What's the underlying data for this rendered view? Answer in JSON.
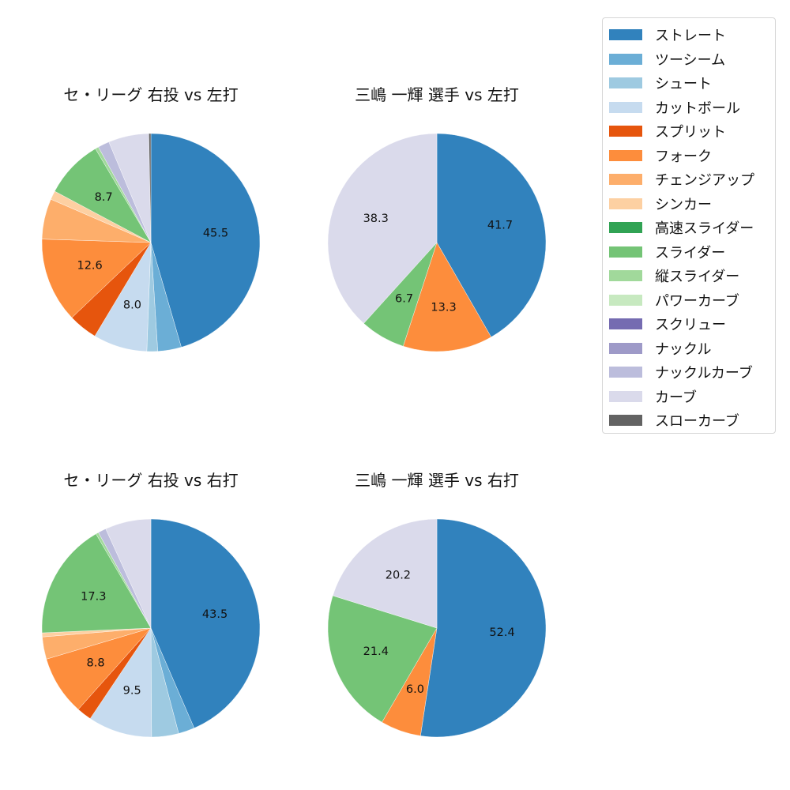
{
  "legend": {
    "items": [
      {
        "label": "ストレート",
        "color": "#3182bd"
      },
      {
        "label": "ツーシーム",
        "color": "#6baed6"
      },
      {
        "label": "シュート",
        "color": "#9ecae1"
      },
      {
        "label": "カットボール",
        "color": "#c6dbef"
      },
      {
        "label": "スプリット",
        "color": "#e6550d"
      },
      {
        "label": "フォーク",
        "color": "#fd8d3c"
      },
      {
        "label": "チェンジアップ",
        "color": "#fdae6b"
      },
      {
        "label": "シンカー",
        "color": "#fdd0a2"
      },
      {
        "label": "高速スライダー",
        "color": "#31a354"
      },
      {
        "label": "スライダー",
        "color": "#74c476"
      },
      {
        "label": "縦スライダー",
        "color": "#a1d99b"
      },
      {
        "label": "パワーカーブ",
        "color": "#c7e9c0"
      },
      {
        "label": "スクリュー",
        "color": "#756bb1"
      },
      {
        "label": "ナックル",
        "color": "#9e9ac8"
      },
      {
        "label": "ナックルカーブ",
        "color": "#bcbddc"
      },
      {
        "label": "カーブ",
        "color": "#dadaeb"
      },
      {
        "label": "スローカーブ",
        "color": "#636363"
      }
    ]
  },
  "chart_data": [
    {
      "type": "pie",
      "title": "セ・リーグ 右投 vs 左打",
      "categories": [
        "ストレート",
        "ツーシーム",
        "シュート",
        "カットボール",
        "スプリット",
        "フォーク",
        "チェンジアップ",
        "シンカー",
        "スライダー",
        "縦スライダー",
        "ナックルカーブ",
        "カーブ",
        "スローカーブ"
      ],
      "values": [
        45.5,
        3.5,
        1.6,
        8.0,
        4.3,
        12.6,
        6.0,
        1.3,
        8.7,
        0.5,
        1.7,
        6.0,
        0.3
      ],
      "labeled": [
        "45.5",
        "",
        "",
        "8.0",
        "",
        "12.6",
        "",
        "",
        "8.7",
        "",
        "",
        "",
        ""
      ],
      "start_angle": 90,
      "direction": "clockwise"
    },
    {
      "type": "pie",
      "title": "三嶋 一輝 選手 vs 左打",
      "categories": [
        "ストレート",
        "フォーク",
        "スライダー",
        "カーブ"
      ],
      "values": [
        41.7,
        13.3,
        6.7,
        38.3
      ],
      "labeled": [
        "41.7",
        "13.3",
        "6.7",
        "38.3"
      ],
      "start_angle": 90,
      "direction": "clockwise"
    },
    {
      "type": "pie",
      "title": "セ・リーグ 右投 vs 右打",
      "categories": [
        "ストレート",
        "ツーシーム",
        "シュート",
        "カットボール",
        "スプリット",
        "フォーク",
        "チェンジアップ",
        "シンカー",
        "スライダー",
        "縦スライダー",
        "ナックルカーブ",
        "カーブ"
      ],
      "values": [
        43.5,
        2.4,
        4.0,
        9.5,
        2.2,
        8.8,
        3.3,
        0.6,
        17.3,
        0.4,
        1.2,
        6.8
      ],
      "labeled": [
        "43.5",
        "",
        "",
        "9.5",
        "",
        "8.8",
        "",
        "",
        "17.3",
        "",
        "",
        ""
      ],
      "start_angle": 90,
      "direction": "clockwise"
    },
    {
      "type": "pie",
      "title": "三嶋 一輝 選手 vs 右打",
      "categories": [
        "ストレート",
        "フォーク",
        "スライダー",
        "カーブ"
      ],
      "values": [
        52.4,
        6.0,
        21.4,
        20.2
      ],
      "labeled": [
        "52.4",
        "6.0",
        "21.4",
        "20.2"
      ],
      "start_angle": 90,
      "direction": "clockwise"
    }
  ]
}
